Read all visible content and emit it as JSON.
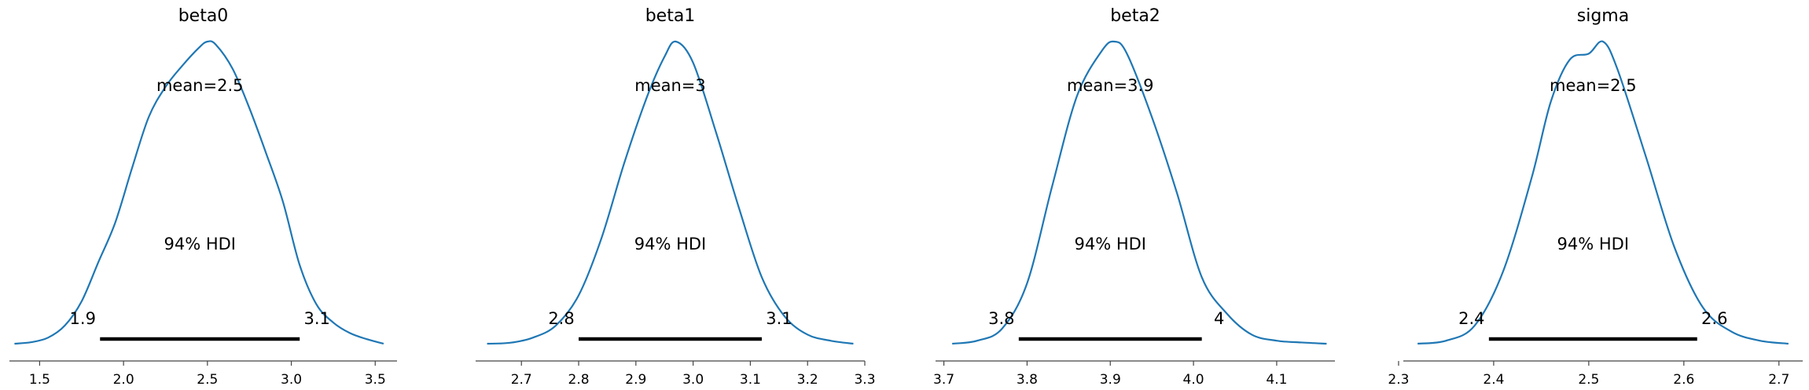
{
  "figure": {
    "background": "#ffffff",
    "curve_color": "#1f77b4",
    "hdi_color": "#000000",
    "axis_color": "#444444"
  },
  "chart_data": [
    {
      "type": "line",
      "title": "beta0",
      "mean_label": "mean=2.5",
      "hdi_label": "94% HDI",
      "hdi": [
        1.86,
        3.05
      ],
      "hdi_low_label": "1.9",
      "hdi_high_label": "3.1",
      "xlim": [
        1.32,
        3.63
      ],
      "ylim": [
        0,
        1.0
      ],
      "xticks": [
        1.5,
        2.0,
        2.5,
        3.0,
        3.5
      ],
      "xtick_labels": [
        "1.5",
        "2.0",
        "2.5",
        "3.0",
        "3.5"
      ],
      "x": [
        1.35,
        1.45,
        1.55,
        1.65,
        1.75,
        1.85,
        1.95,
        2.05,
        2.15,
        2.25,
        2.35,
        2.45,
        2.5,
        2.55,
        2.65,
        2.75,
        2.85,
        2.95,
        3.05,
        3.15,
        3.25,
        3.35,
        3.45,
        3.55
      ],
      "y": [
        0.0,
        0.005,
        0.02,
        0.06,
        0.14,
        0.27,
        0.4,
        0.58,
        0.75,
        0.85,
        0.92,
        0.98,
        1.0,
        0.99,
        0.91,
        0.78,
        0.63,
        0.47,
        0.26,
        0.13,
        0.07,
        0.035,
        0.015,
        0.0
      ]
    },
    {
      "type": "line",
      "title": "beta1",
      "mean_label": "mean=3",
      "hdi_label": "94% HDI",
      "hdi": [
        2.8,
        3.12
      ],
      "hdi_low_label": "2.8",
      "hdi_high_label": "3.1",
      "xlim": [
        2.62,
        3.3
      ],
      "ylim": [
        0,
        1.0
      ],
      "xticks": [
        2.7,
        2.8,
        2.9,
        3.0,
        3.1,
        3.2,
        3.3
      ],
      "xtick_labels": [
        "2.7",
        "2.8",
        "2.9",
        "3.0",
        "3.1",
        "3.2",
        "3.3"
      ],
      "x": [
        2.64,
        2.68,
        2.72,
        2.76,
        2.8,
        2.84,
        2.88,
        2.92,
        2.95,
        2.97,
        3.0,
        3.04,
        3.08,
        3.12,
        3.16,
        3.2,
        3.24,
        3.28
      ],
      "y": [
        0.0,
        0.003,
        0.02,
        0.06,
        0.16,
        0.35,
        0.6,
        0.82,
        0.95,
        1.0,
        0.93,
        0.7,
        0.45,
        0.22,
        0.09,
        0.03,
        0.01,
        0.0
      ]
    },
    {
      "type": "line",
      "title": "beta2",
      "mean_label": "mean=3.9",
      "hdi_label": "94% HDI",
      "hdi": [
        3.79,
        4.01
      ],
      "hdi_low_label": "3.8",
      "hdi_high_label": "4",
      "xlim": [
        3.69,
        4.17
      ],
      "ylim": [
        0,
        1.0
      ],
      "xticks": [
        3.7,
        3.8,
        3.9,
        4.0,
        4.1
      ],
      "xtick_labels": [
        "3.7",
        "3.8",
        "3.9",
        "4.0",
        "4.1"
      ],
      "x": [
        3.71,
        3.74,
        3.77,
        3.8,
        3.83,
        3.86,
        3.89,
        3.905,
        3.92,
        3.95,
        3.98,
        4.01,
        4.04,
        4.07,
        4.1,
        4.13,
        4.16
      ],
      "y": [
        0.0,
        0.01,
        0.05,
        0.2,
        0.52,
        0.82,
        0.97,
        1.0,
        0.96,
        0.75,
        0.5,
        0.22,
        0.1,
        0.03,
        0.01,
        0.004,
        0.0
      ]
    },
    {
      "type": "line",
      "title": "sigma",
      "mean_label": "mean=2.5",
      "hdi_label": "94% HDI",
      "hdi": [
        2.395,
        2.614
      ],
      "hdi_low_label": "2.4",
      "hdi_high_label": "2.6",
      "xlim": [
        2.305,
        2.725
      ],
      "ylim": [
        0,
        1.0
      ],
      "xticks": [
        2.3,
        2.4,
        2.5,
        2.6,
        2.7
      ],
      "xtick_labels": [
        "2.3",
        "2.4",
        "2.5",
        "2.6",
        "2.7"
      ],
      "x": [
        2.32,
        2.35,
        2.38,
        2.41,
        2.44,
        2.46,
        2.48,
        2.5,
        2.515,
        2.53,
        2.56,
        2.59,
        2.62,
        2.65,
        2.68,
        2.71
      ],
      "y": [
        0.0,
        0.01,
        0.06,
        0.24,
        0.55,
        0.8,
        0.94,
        0.96,
        1.0,
        0.91,
        0.62,
        0.32,
        0.12,
        0.04,
        0.01,
        0.0
      ]
    }
  ]
}
